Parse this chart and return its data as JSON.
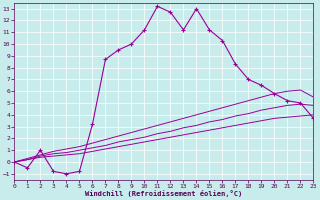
{
  "background_color": "#c8ecec",
  "line_color": "#990099",
  "grid_color": "#ffffff",
  "xlabel": "Windchill (Refroidissement éolien,°C)",
  "xlabel_color": "#550055",
  "tick_color": "#550055",
  "xlim": [
    0,
    23
  ],
  "ylim": [
    -1.5,
    13.5
  ],
  "xticks": [
    0,
    1,
    2,
    3,
    4,
    5,
    6,
    7,
    8,
    9,
    10,
    11,
    12,
    13,
    14,
    15,
    16,
    17,
    18,
    19,
    20,
    21,
    22,
    23
  ],
  "yticks": [
    -1,
    0,
    1,
    2,
    3,
    4,
    5,
    6,
    7,
    8,
    9,
    10,
    11,
    12,
    13
  ],
  "main_x": [
    0,
    1,
    2,
    3,
    4,
    5,
    6,
    7,
    8,
    9,
    10,
    11,
    12,
    13,
    14,
    15,
    16,
    17,
    18,
    19,
    20,
    21,
    22,
    23
  ],
  "main_y": [
    0,
    -0.5,
    1.0,
    -0.8,
    -1.0,
    -0.8,
    3.2,
    8.7,
    9.5,
    10.0,
    11.2,
    13.2,
    12.7,
    11.2,
    13.0,
    11.2,
    10.3,
    8.3,
    7.0,
    6.5,
    5.8,
    5.2,
    5.0,
    3.7
  ],
  "lin1_x": [
    0,
    1,
    2,
    3,
    4,
    5,
    6,
    7,
    8,
    9,
    10,
    11,
    12,
    13,
    14,
    15,
    16,
    17,
    18,
    19,
    20,
    21,
    22,
    23
  ],
  "lin1_y": [
    0.0,
    0.2,
    0.4,
    0.5,
    0.6,
    0.7,
    0.9,
    1.1,
    1.3,
    1.5,
    1.7,
    1.9,
    2.1,
    2.3,
    2.5,
    2.7,
    2.9,
    3.1,
    3.3,
    3.5,
    3.7,
    3.8,
    3.9,
    4.0
  ],
  "lin2_x": [
    0,
    1,
    2,
    3,
    4,
    5,
    6,
    7,
    8,
    9,
    10,
    11,
    12,
    13,
    14,
    15,
    16,
    17,
    18,
    19,
    20,
    21,
    22,
    23
  ],
  "lin2_y": [
    0.0,
    0.2,
    0.5,
    0.7,
    0.8,
    1.0,
    1.2,
    1.4,
    1.7,
    1.9,
    2.1,
    2.4,
    2.6,
    2.9,
    3.1,
    3.4,
    3.6,
    3.9,
    4.1,
    4.4,
    4.6,
    4.8,
    4.9,
    4.8
  ],
  "lin3_x": [
    0,
    1,
    2,
    3,
    4,
    5,
    6,
    7,
    8,
    9,
    10,
    11,
    12,
    13,
    14,
    15,
    16,
    17,
    18,
    19,
    20,
    21,
    22,
    23
  ],
  "lin3_y": [
    0.0,
    0.3,
    0.6,
    0.9,
    1.1,
    1.3,
    1.6,
    1.9,
    2.2,
    2.5,
    2.8,
    3.1,
    3.4,
    3.7,
    4.0,
    4.3,
    4.6,
    4.9,
    5.2,
    5.5,
    5.8,
    6.0,
    6.1,
    5.5
  ]
}
